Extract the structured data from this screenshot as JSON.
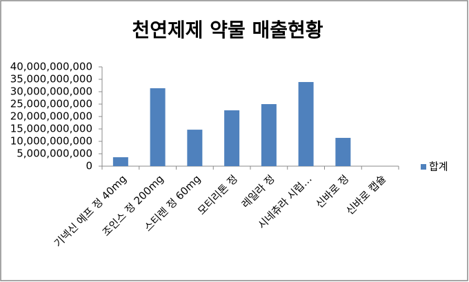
{
  "chart_data": {
    "type": "bar",
    "title": "천연제제 약물 매출현황",
    "categories": [
      "기넥신 에프 정 40mg",
      "조인스 정 200mg",
      "스티렌 정 60mg",
      "모티리톤 정",
      "레일라 정",
      "시네츄라 시럽…",
      "신바로 정",
      "신바로 캡슐"
    ],
    "series": [
      {
        "name": "합계",
        "color": "#4f81bd",
        "values": [
          3600000000,
          31400000000,
          14700000000,
          22500000000,
          25000000000,
          33900000000,
          11400000000,
          0
        ]
      }
    ],
    "ylim": [
      0,
      40000000000
    ],
    "yticks": [
      {
        "value": 0,
        "label": "0"
      },
      {
        "value": 5000000000,
        "label": "5,000,000,000"
      },
      {
        "value": 10000000000,
        "label": "10,000,000,000"
      },
      {
        "value": 15000000000,
        "label": "15,000,000,000"
      },
      {
        "value": 20000000000,
        "label": "20,000,000,000"
      },
      {
        "value": 25000000000,
        "label": "25,000,000,000"
      },
      {
        "value": 30000000000,
        "label": "30,000,000,000"
      },
      {
        "value": 35000000000,
        "label": "35,000,000,000"
      },
      {
        "value": 40000000000,
        "label": "40,000,000,000"
      }
    ],
    "grid": false,
    "legend": "right"
  }
}
